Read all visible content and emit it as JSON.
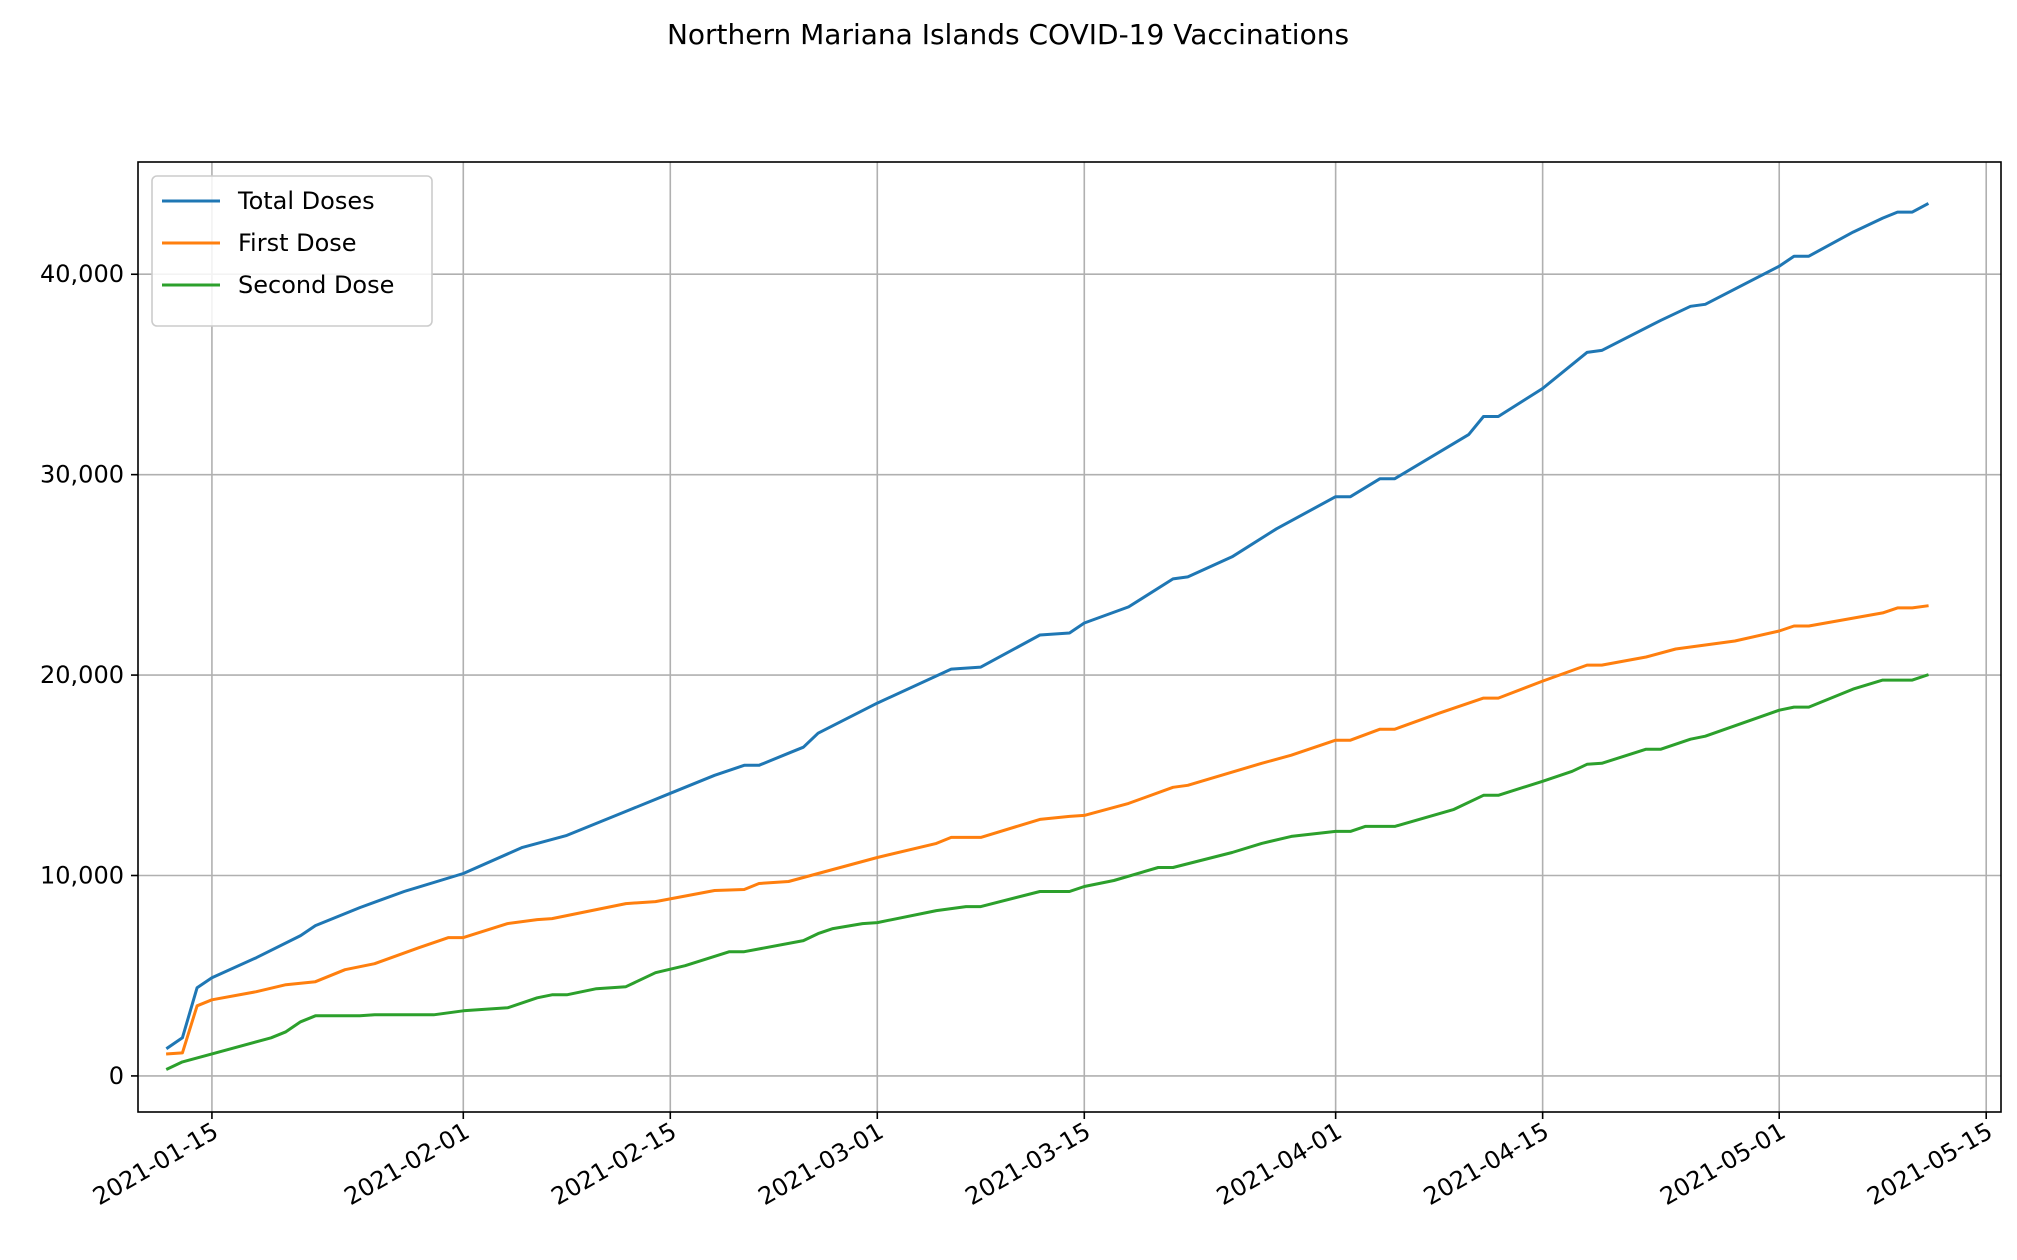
{
  "chart_data": {
    "type": "line",
    "title": "Northern Mariana Islands COVID-19 Vaccinations",
    "xlabel": "",
    "ylabel": "",
    "x_type": "date",
    "xlim": [
      "2021-01-10",
      "2021-05-16"
    ],
    "ylim": [
      -1800,
      45600
    ],
    "x_ticks": [
      "2021-01-15",
      "2021-02-01",
      "2021-02-15",
      "2021-03-01",
      "2021-03-15",
      "2021-04-01",
      "2021-04-15",
      "2021-05-01",
      "2021-05-15"
    ],
    "y_ticks": [
      0,
      10000,
      20000,
      30000,
      40000
    ],
    "y_tick_labels": [
      "0",
      "10,000",
      "20,000",
      "30,000",
      "40,000"
    ],
    "grid": true,
    "legend_position": "top-left",
    "colors": {
      "total": "#1f77b4",
      "first": "#ff7f0e",
      "second": "#2ca02c"
    },
    "series": [
      {
        "name": "Total Doses",
        "color": "#1f77b4",
        "points": [
          [
            "2021-01-12",
            1400
          ],
          [
            "2021-01-13",
            1900
          ],
          [
            "2021-01-14",
            4400
          ],
          [
            "2021-01-15",
            4900
          ],
          [
            "2021-01-18",
            5900
          ],
          [
            "2021-01-21",
            7000
          ],
          [
            "2021-01-22",
            7500
          ],
          [
            "2021-01-25",
            8400
          ],
          [
            "2021-01-28",
            9200
          ],
          [
            "2021-02-01",
            10100
          ],
          [
            "2021-02-05",
            11400
          ],
          [
            "2021-02-08",
            12000
          ],
          [
            "2021-02-12",
            13200
          ],
          [
            "2021-02-15",
            14100
          ],
          [
            "2021-02-18",
            15000
          ],
          [
            "2021-02-20",
            15500
          ],
          [
            "2021-02-21",
            15500
          ],
          [
            "2021-02-23",
            16100
          ],
          [
            "2021-02-24",
            16400
          ],
          [
            "2021-02-25",
            17100
          ],
          [
            "2021-03-01",
            18600
          ],
          [
            "2021-03-06",
            20300
          ],
          [
            "2021-03-08",
            20400
          ],
          [
            "2021-03-12",
            22000
          ],
          [
            "2021-03-14",
            22100
          ],
          [
            "2021-03-15",
            22600
          ],
          [
            "2021-03-18",
            23400
          ],
          [
            "2021-03-21",
            24800
          ],
          [
            "2021-03-22",
            24900
          ],
          [
            "2021-03-25",
            25900
          ],
          [
            "2021-03-28",
            27300
          ],
          [
            "2021-04-01",
            28900
          ],
          [
            "2021-04-02",
            28900
          ],
          [
            "2021-04-04",
            29800
          ],
          [
            "2021-04-05",
            29800
          ],
          [
            "2021-04-10",
            32000
          ],
          [
            "2021-04-11",
            32900
          ],
          [
            "2021-04-12",
            32900
          ],
          [
            "2021-04-15",
            34300
          ],
          [
            "2021-04-18",
            36100
          ],
          [
            "2021-04-19",
            36200
          ],
          [
            "2021-04-23",
            37700
          ],
          [
            "2021-04-25",
            38400
          ],
          [
            "2021-04-26",
            38500
          ],
          [
            "2021-05-01",
            40400
          ],
          [
            "2021-05-02",
            40900
          ],
          [
            "2021-05-03",
            40900
          ],
          [
            "2021-05-06",
            42100
          ],
          [
            "2021-05-08",
            42800
          ],
          [
            "2021-05-09",
            43100
          ],
          [
            "2021-05-10",
            43100
          ],
          [
            "2021-05-11",
            43500
          ]
        ]
      },
      {
        "name": "First Dose",
        "color": "#ff7f0e",
        "points": [
          [
            "2021-01-12",
            1100
          ],
          [
            "2021-01-13",
            1150
          ],
          [
            "2021-01-14",
            3500
          ],
          [
            "2021-01-15",
            3800
          ],
          [
            "2021-01-18",
            4200
          ],
          [
            "2021-01-20",
            4550
          ],
          [
            "2021-01-22",
            4700
          ],
          [
            "2021-01-24",
            5300
          ],
          [
            "2021-01-26",
            5600
          ],
          [
            "2021-01-29",
            6400
          ],
          [
            "2021-01-31",
            6900
          ],
          [
            "2021-02-01",
            6900
          ],
          [
            "2021-02-04",
            7600
          ],
          [
            "2021-02-06",
            7800
          ],
          [
            "2021-02-07",
            7850
          ],
          [
            "2021-02-12",
            8600
          ],
          [
            "2021-02-14",
            8700
          ],
          [
            "2021-02-18",
            9250
          ],
          [
            "2021-02-20",
            9300
          ],
          [
            "2021-02-21",
            9600
          ],
          [
            "2021-02-23",
            9700
          ],
          [
            "2021-02-25",
            10100
          ],
          [
            "2021-03-01",
            10900
          ],
          [
            "2021-03-05",
            11600
          ],
          [
            "2021-03-06",
            11900
          ],
          [
            "2021-03-08",
            11900
          ],
          [
            "2021-03-12",
            12800
          ],
          [
            "2021-03-14",
            12950
          ],
          [
            "2021-03-15",
            13000
          ],
          [
            "2021-03-18",
            13600
          ],
          [
            "2021-03-21",
            14400
          ],
          [
            "2021-03-22",
            14500
          ],
          [
            "2021-03-27",
            15600
          ],
          [
            "2021-03-29",
            16000
          ],
          [
            "2021-04-01",
            16750
          ],
          [
            "2021-04-02",
            16750
          ],
          [
            "2021-04-04",
            17300
          ],
          [
            "2021-04-05",
            17300
          ],
          [
            "2021-04-08",
            18100
          ],
          [
            "2021-04-11",
            18850
          ],
          [
            "2021-04-12",
            18850
          ],
          [
            "2021-04-15",
            19700
          ],
          [
            "2021-04-18",
            20500
          ],
          [
            "2021-04-19",
            20500
          ],
          [
            "2021-04-22",
            20900
          ],
          [
            "2021-04-24",
            21300
          ],
          [
            "2021-04-26",
            21500
          ],
          [
            "2021-04-28",
            21700
          ],
          [
            "2021-05-01",
            22200
          ],
          [
            "2021-05-02",
            22450
          ],
          [
            "2021-05-03",
            22450
          ],
          [
            "2021-05-08",
            23100
          ],
          [
            "2021-05-09",
            23350
          ],
          [
            "2021-05-10",
            23350
          ],
          [
            "2021-05-11",
            23450
          ]
        ]
      },
      {
        "name": "Second Dose",
        "color": "#2ca02c",
        "points": [
          [
            "2021-01-12",
            350
          ],
          [
            "2021-01-13",
            700
          ],
          [
            "2021-01-15",
            1100
          ],
          [
            "2021-01-19",
            1900
          ],
          [
            "2021-01-20",
            2200
          ],
          [
            "2021-01-21",
            2700
          ],
          [
            "2021-01-22",
            3000
          ],
          [
            "2021-01-25",
            3000
          ],
          [
            "2021-01-26",
            3050
          ],
          [
            "2021-01-30",
            3050
          ],
          [
            "2021-02-01",
            3250
          ],
          [
            "2021-02-04",
            3400
          ],
          [
            "2021-02-06",
            3900
          ],
          [
            "2021-02-07",
            4050
          ],
          [
            "2021-02-08",
            4050
          ],
          [
            "2021-02-10",
            4350
          ],
          [
            "2021-02-12",
            4450
          ],
          [
            "2021-02-14",
            5150
          ],
          [
            "2021-02-16",
            5500
          ],
          [
            "2021-02-19",
            6200
          ],
          [
            "2021-02-20",
            6200
          ],
          [
            "2021-02-24",
            6750
          ],
          [
            "2021-02-25",
            7100
          ],
          [
            "2021-02-26",
            7350
          ],
          [
            "2021-02-28",
            7600
          ],
          [
            "2021-03-01",
            7650
          ],
          [
            "2021-03-05",
            8250
          ],
          [
            "2021-03-07",
            8450
          ],
          [
            "2021-03-08",
            8450
          ],
          [
            "2021-03-12",
            9200
          ],
          [
            "2021-03-14",
            9200
          ],
          [
            "2021-03-15",
            9450
          ],
          [
            "2021-03-17",
            9750
          ],
          [
            "2021-03-20",
            10400
          ],
          [
            "2021-03-21",
            10400
          ],
          [
            "2021-03-25",
            11150
          ],
          [
            "2021-03-27",
            11600
          ],
          [
            "2021-03-29",
            11950
          ],
          [
            "2021-04-01",
            12200
          ],
          [
            "2021-04-02",
            12200
          ],
          [
            "2021-04-03",
            12450
          ],
          [
            "2021-04-05",
            12450
          ],
          [
            "2021-04-09",
            13300
          ],
          [
            "2021-04-11",
            14000
          ],
          [
            "2021-04-12",
            14000
          ],
          [
            "2021-04-15",
            14700
          ],
          [
            "2021-04-17",
            15200
          ],
          [
            "2021-04-18",
            15550
          ],
          [
            "2021-04-19",
            15600
          ],
          [
            "2021-04-22",
            16300
          ],
          [
            "2021-04-23",
            16300
          ],
          [
            "2021-04-25",
            16800
          ],
          [
            "2021-04-26",
            16950
          ],
          [
            "2021-05-01",
            18250
          ],
          [
            "2021-05-02",
            18400
          ],
          [
            "2021-05-03",
            18400
          ],
          [
            "2021-05-06",
            19300
          ],
          [
            "2021-05-08",
            19750
          ],
          [
            "2021-05-10",
            19750
          ],
          [
            "2021-05-11",
            20000
          ]
        ]
      }
    ]
  }
}
